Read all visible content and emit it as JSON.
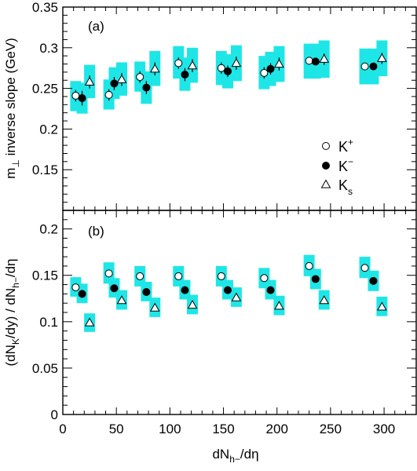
{
  "colors": {
    "band": "#1fe6e6",
    "axis": "#000000",
    "marker": "#000000"
  },
  "chart_data": [
    {
      "type": "scatter",
      "panel_label": "(a)",
      "ylabel": "m_⊥ inverse slope (GeV)",
      "ylabel_parts": {
        "pre": "m",
        "sub": "⊥",
        "post": " inverse slope (GeV)"
      },
      "xlabel": "",
      "xlim": [
        0,
        330
      ],
      "ylim": [
        0.1,
        0.35
      ],
      "xticks": [
        0,
        50,
        100,
        150,
        200,
        250,
        300
      ],
      "xtick_labels": [
        "",
        "",
        "",
        "",
        "",
        "",
        ""
      ],
      "yticks": [
        0.15,
        0.2,
        0.25,
        0.3,
        0.35
      ],
      "ytick_labels": [
        "0.15",
        "0.2",
        "0.25",
        "0.3",
        "0.35"
      ],
      "legend": {
        "position": "right",
        "entries": [
          {
            "marker": "circle-open",
            "label": "K",
            "sup": "+",
            "sub": ""
          },
          {
            "marker": "circle-filled",
            "label": "K",
            "sup": "−",
            "sub": ""
          },
          {
            "marker": "triangle-open",
            "label": "K",
            "sup": "",
            "sub": "s"
          }
        ]
      },
      "series": [
        {
          "marker": "circle-open",
          "points": [
            {
              "x": 12,
              "y": 0.241,
              "err": 0.007,
              "sys_lo": 0.222,
              "sys_hi": 0.259
            },
            {
              "x": 43,
              "y": 0.242,
              "err": 0.007,
              "sys_lo": 0.224,
              "sys_hi": 0.261
            },
            {
              "x": 72,
              "y": 0.264,
              "err": 0.007,
              "sys_lo": 0.246,
              "sys_hi": 0.283
            },
            {
              "x": 108,
              "y": 0.281,
              "err": 0.007,
              "sys_lo": 0.262,
              "sys_hi": 0.302
            },
            {
              "x": 148,
              "y": 0.275,
              "err": 0.007,
              "sys_lo": 0.254,
              "sys_hi": 0.296
            },
            {
              "x": 188,
              "y": 0.269,
              "err": 0.007,
              "sys_lo": 0.249,
              "sys_hi": 0.29
            },
            {
              "x": 230,
              "y": 0.284,
              "err": 0.004,
              "sys_lo": 0.262,
              "sys_hi": 0.305
            },
            {
              "x": 282,
              "y": 0.277,
              "err": 0.004,
              "sys_lo": 0.255,
              "sys_hi": 0.299
            }
          ]
        },
        {
          "marker": "circle-filled",
          "points": [
            {
              "x": 18,
              "y": 0.238,
              "err": 0.009,
              "sys_lo": 0.219,
              "sys_hi": 0.257
            },
            {
              "x": 48,
              "y": 0.256,
              "err": 0.008,
              "sys_lo": 0.237,
              "sys_hi": 0.276
            },
            {
              "x": 78,
              "y": 0.251,
              "err": 0.008,
              "sys_lo": 0.231,
              "sys_hi": 0.271
            },
            {
              "x": 114,
              "y": 0.267,
              "err": 0.008,
              "sys_lo": 0.247,
              "sys_hi": 0.288
            },
            {
              "x": 154,
              "y": 0.271,
              "err": 0.007,
              "sys_lo": 0.25,
              "sys_hi": 0.292
            },
            {
              "x": 194,
              "y": 0.274,
              "err": 0.007,
              "sys_lo": 0.253,
              "sys_hi": 0.295
            },
            {
              "x": 236,
              "y": 0.283,
              "err": 0.004,
              "sys_lo": 0.262,
              "sys_hi": 0.305
            },
            {
              "x": 290,
              "y": 0.277,
              "err": 0.004,
              "sys_lo": 0.255,
              "sys_hi": 0.299
            }
          ]
        },
        {
          "marker": "triangle-open",
          "points": [
            {
              "x": 25,
              "y": 0.258,
              "err": 0.008,
              "sys_lo": 0.238,
              "sys_hi": 0.279
            },
            {
              "x": 55,
              "y": 0.261,
              "err": 0.008,
              "sys_lo": 0.241,
              "sys_hi": 0.282
            },
            {
              "x": 86,
              "y": 0.274,
              "err": 0.008,
              "sys_lo": 0.253,
              "sys_hi": 0.296
            },
            {
              "x": 121,
              "y": 0.278,
              "err": 0.008,
              "sys_lo": 0.257,
              "sys_hi": 0.3
            },
            {
              "x": 162,
              "y": 0.281,
              "err": 0.008,
              "sys_lo": 0.259,
              "sys_hi": 0.303
            },
            {
              "x": 202,
              "y": 0.28,
              "err": 0.008,
              "sys_lo": 0.258,
              "sys_hi": 0.302
            },
            {
              "x": 244,
              "y": 0.286,
              "err": 0.007,
              "sys_lo": 0.263,
              "sys_hi": 0.309
            },
            {
              "x": 298,
              "y": 0.287,
              "err": 0.007,
              "sys_lo": 0.265,
              "sys_hi": 0.309
            }
          ]
        }
      ]
    },
    {
      "type": "scatter",
      "panel_label": "(b)",
      "ylabel": "(dN_K/dy) / dN_h−/dη",
      "ylabel_parts": {
        "a": "(dN",
        "b": "K",
        "c": "/dy) / dN",
        "d": "h−",
        "e": "/dη"
      },
      "xlabel": "dN_h−/dη",
      "xlabel_parts": {
        "a": "dN",
        "b": "h−",
        "c": "/dη"
      },
      "xlim": [
        0,
        330
      ],
      "ylim": [
        0,
        0.22
      ],
      "xticks": [
        0,
        50,
        100,
        150,
        200,
        250,
        300
      ],
      "xtick_labels": [
        "0",
        "50",
        "100",
        "150",
        "200",
        "250",
        "300"
      ],
      "yticks": [
        0,
        0.05,
        0.1,
        0.15,
        0.2
      ],
      "ytick_labels": [
        "0",
        "0.05",
        "0.1",
        "0.15",
        "0.2"
      ],
      "series": [
        {
          "marker": "circle-open",
          "points": [
            {
              "x": 12,
              "y": 0.137,
              "sys_lo": 0.127,
              "sys_hi": 0.148
            },
            {
              "x": 43,
              "y": 0.152,
              "sys_lo": 0.141,
              "sys_hi": 0.164
            },
            {
              "x": 72,
              "y": 0.149,
              "sys_lo": 0.138,
              "sys_hi": 0.16
            },
            {
              "x": 108,
              "y": 0.149,
              "sys_lo": 0.138,
              "sys_hi": 0.16
            },
            {
              "x": 148,
              "y": 0.149,
              "sys_lo": 0.138,
              "sys_hi": 0.16
            },
            {
              "x": 188,
              "y": 0.147,
              "sys_lo": 0.136,
              "sys_hi": 0.158
            },
            {
              "x": 230,
              "y": 0.16,
              "sys_lo": 0.149,
              "sys_hi": 0.172
            },
            {
              "x": 282,
              "y": 0.158,
              "sys_lo": 0.147,
              "sys_hi": 0.17
            }
          ]
        },
        {
          "marker": "circle-filled",
          "points": [
            {
              "x": 18,
              "y": 0.13,
              "sys_lo": 0.12,
              "sys_hi": 0.141
            },
            {
              "x": 48,
              "y": 0.136,
              "sys_lo": 0.126,
              "sys_hi": 0.147
            },
            {
              "x": 78,
              "y": 0.132,
              "sys_lo": 0.122,
              "sys_hi": 0.143
            },
            {
              "x": 114,
              "y": 0.134,
              "sys_lo": 0.124,
              "sys_hi": 0.145
            },
            {
              "x": 154,
              "y": 0.134,
              "sys_lo": 0.124,
              "sys_hi": 0.145
            },
            {
              "x": 194,
              "y": 0.134,
              "sys_lo": 0.124,
              "sys_hi": 0.145
            },
            {
              "x": 236,
              "y": 0.146,
              "sys_lo": 0.135,
              "sys_hi": 0.157
            },
            {
              "x": 290,
              "y": 0.144,
              "sys_lo": 0.133,
              "sys_hi": 0.155
            }
          ]
        },
        {
          "marker": "triangle-open",
          "points": [
            {
              "x": 25,
              "y": 0.099,
              "sys_lo": 0.089,
              "sys_hi": 0.109
            },
            {
              "x": 55,
              "y": 0.123,
              "sys_lo": 0.113,
              "sys_hi": 0.134
            },
            {
              "x": 86,
              "y": 0.115,
              "sys_lo": 0.105,
              "sys_hi": 0.126
            },
            {
              "x": 121,
              "y": 0.118,
              "sys_lo": 0.108,
              "sys_hi": 0.129
            },
            {
              "x": 162,
              "y": 0.126,
              "sys_lo": 0.116,
              "sys_hi": 0.137
            },
            {
              "x": 202,
              "y": 0.117,
              "sys_lo": 0.107,
              "sys_hi": 0.128
            },
            {
              "x": 244,
              "y": 0.123,
              "sys_lo": 0.113,
              "sys_hi": 0.134
            },
            {
              "x": 298,
              "y": 0.116,
              "sys_lo": 0.106,
              "sys_hi": 0.127
            }
          ]
        }
      ]
    }
  ]
}
